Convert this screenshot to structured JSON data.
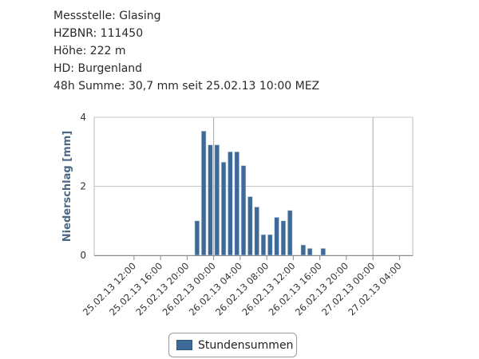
{
  "info": {
    "station": "Messstelle: Glasing",
    "hzbnr": "HZBNR: 111450",
    "altitude": "Höhe: 222 m",
    "hd": "HD: Burgenland",
    "sum48h": "48h Summe: 30,7 mm seit 25.02.13 10:00 MEZ"
  },
  "chart_data": {
    "type": "bar",
    "title": "",
    "xlabel": "",
    "ylabel": "Niederschlag [mm]",
    "ylim": [
      0,
      4
    ],
    "yticks": [
      0,
      2,
      4
    ],
    "xlim_hours": [
      -4,
      44
    ],
    "x_start": "25.02.13 10:00",
    "xtick_labels": [
      "25.02.13 12:00",
      "25.02.13 16:00",
      "25.02.13 20:00",
      "26.02.13 00:00",
      "26.02.13 04:00",
      "26.02.13 08:00",
      "26.02.13 12:00",
      "26.02.13 16:00",
      "26.02.13 20:00",
      "27.02.13 00:00",
      "27.02.13 04:00"
    ],
    "gridline_ticks": [
      3,
      9
    ],
    "series": [
      {
        "name": "Stundensummen",
        "color": "#3e6a98",
        "values": [
          0,
          0,
          0,
          0,
          0,
          0,
          0,
          0,
          0,
          0,
          0,
          1.0,
          3.6,
          3.2,
          3.2,
          2.7,
          3.0,
          3.0,
          2.6,
          1.7,
          1.4,
          0.6,
          0.6,
          1.1,
          1.0,
          1.3,
          0,
          0.3,
          0.2,
          0,
          0.2,
          0,
          0,
          0,
          0,
          0,
          0,
          0,
          0,
          0,
          0,
          0,
          0,
          0,
          0,
          0,
          0,
          0
        ]
      }
    ],
    "legend": "bottom-center",
    "grid": true
  }
}
